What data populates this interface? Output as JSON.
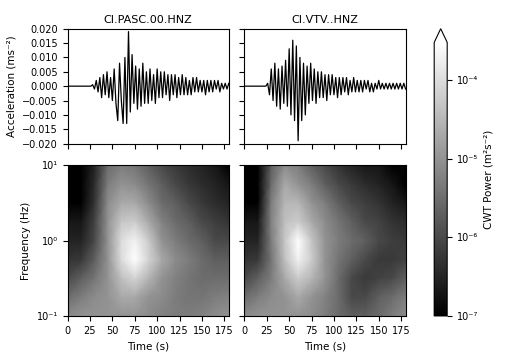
{
  "chart_data": [
    {
      "type": "line",
      "title": "CI.PASC.00.HNZ",
      "y_label": "Acceleration (ms⁻²)",
      "color": "black",
      "tick_labels": "y",
      "xlim": [
        0,
        180
      ],
      "xticks": [
        0,
        25,
        50,
        75,
        100,
        125,
        150,
        175
      ],
      "ylim": [
        -0.02,
        0.02
      ],
      "yticks": [
        {
          "value": -0.02,
          "label": "−0.020"
        },
        {
          "value": -0.015,
          "label": "−0.015"
        },
        {
          "value": -0.01,
          "label": "−0.010"
        },
        {
          "value": -0.005,
          "label": "−0.005"
        },
        {
          "value": 0,
          "label": "0.000"
        },
        {
          "value": 0.005,
          "label": "0.005"
        },
        {
          "value": 0.01,
          "label": "0.010"
        },
        {
          "value": 0.015,
          "label": "0.015"
        },
        {
          "value": 0.02,
          "label": "0.020"
        }
      ],
      "x": [
        0,
        2,
        4,
        6,
        8,
        10,
        12,
        14,
        16,
        18,
        20,
        22,
        24,
        26,
        28,
        30,
        32,
        34,
        36,
        38,
        40,
        42,
        44,
        46,
        48,
        50,
        52,
        54,
        56,
        58,
        60,
        62,
        64,
        66,
        68,
        70,
        72,
        74,
        76,
        78,
        80,
        82,
        84,
        86,
        88,
        90,
        92,
        94,
        96,
        98,
        100,
        102,
        104,
        106,
        108,
        110,
        112,
        114,
        116,
        118,
        120,
        122,
        124,
        126,
        128,
        130,
        132,
        134,
        136,
        138,
        140,
        142,
        144,
        146,
        148,
        150,
        152,
        154,
        156,
        158,
        160,
        162,
        164,
        166,
        168,
        170,
        172,
        174,
        176,
        178,
        180
      ],
      "values": [
        0,
        0,
        0,
        0,
        0,
        0,
        0,
        0,
        0,
        0,
        0,
        0,
        0,
        0,
        0.0005,
        -0.001,
        0.002,
        -0.002,
        0.003,
        -0.004,
        0.004,
        -0.003,
        0.005,
        -0.004,
        0.003,
        -0.005,
        0.006,
        -0.006,
        -0.012,
        0.008,
        -0.005,
        -0.013,
        0.01,
        -0.013,
        0.019,
        -0.009,
        0.011,
        -0.006,
        0.007,
        -0.008,
        0.006,
        -0.007,
        0.008,
        -0.006,
        0.005,
        -0.006,
        0.006,
        -0.005,
        0.004,
        -0.006,
        0.006,
        -0.004,
        0.005,
        -0.004,
        0.005,
        -0.003,
        0.004,
        -0.005,
        0.004,
        -0.003,
        0.004,
        -0.004,
        0.003,
        -0.003,
        0.004,
        -0.003,
        0.003,
        -0.003,
        0.002,
        -0.003,
        0.003,
        -0.002,
        0.003,
        -0.002,
        0.002,
        -0.002,
        0.002,
        -0.003,
        0.002,
        -0.002,
        0.002,
        -0.002,
        0.002,
        -0.001,
        0.002,
        -0.002,
        0.001,
        -0.001,
        0.001,
        -0.001,
        0.001
      ]
    },
    {
      "type": "line",
      "title": "CI.VTV..HNZ",
      "color": "black",
      "tick_labels": false,
      "xlim": [
        0,
        180
      ],
      "xticks": [
        0,
        25,
        50,
        75,
        100,
        125,
        150,
        175
      ],
      "ylim": [
        -0.02,
        0.02
      ],
      "yticks": [
        -0.02,
        -0.015,
        -0.01,
        -0.005,
        0,
        0.005,
        0.01,
        0.015,
        0.02
      ],
      "x": [
        0,
        2,
        4,
        6,
        8,
        10,
        12,
        14,
        16,
        18,
        20,
        22,
        24,
        26,
        28,
        30,
        32,
        34,
        36,
        38,
        40,
        42,
        44,
        46,
        48,
        50,
        52,
        54,
        56,
        58,
        60,
        62,
        64,
        66,
        68,
        70,
        72,
        74,
        76,
        78,
        80,
        82,
        84,
        86,
        88,
        90,
        92,
        94,
        96,
        98,
        100,
        102,
        104,
        106,
        108,
        110,
        112,
        114,
        116,
        118,
        120,
        122,
        124,
        126,
        128,
        130,
        132,
        134,
        136,
        138,
        140,
        142,
        144,
        146,
        148,
        150,
        152,
        154,
        156,
        158,
        160,
        162,
        164,
        166,
        168,
        170,
        172,
        174,
        176,
        178,
        180
      ],
      "values": [
        0,
        0,
        0,
        0,
        0,
        0,
        0,
        0,
        0,
        0,
        0,
        0,
        0,
        0.001,
        -0.003,
        0.006,
        -0.005,
        0.008,
        -0.007,
        0.006,
        -0.008,
        0.007,
        -0.006,
        0.009,
        -0.007,
        0.013,
        -0.01,
        0.016,
        -0.012,
        0.014,
        -0.019,
        0.01,
        -0.012,
        0.008,
        -0.01,
        0.007,
        -0.006,
        0.008,
        -0.005,
        0.006,
        -0.006,
        0.005,
        -0.004,
        0.005,
        -0.004,
        0.004,
        -0.005,
        0.004,
        -0.003,
        0.004,
        -0.003,
        0.003,
        -0.004,
        0.003,
        -0.003,
        0.003,
        -0.002,
        0.003,
        -0.003,
        0.002,
        -0.002,
        0.003,
        -0.002,
        0.002,
        -0.002,
        0.002,
        -0.002,
        0.002,
        -0.001,
        0.002,
        -0.002,
        0.001,
        -0.002,
        0.001,
        -0.001,
        0.002,
        -0.001,
        0.001,
        -0.001,
        0.001,
        -0.001,
        0.001,
        -0.001,
        0.001,
        -0.001,
        0.001,
        -0.001,
        0.001,
        -0.001,
        0.001,
        -0.001
      ]
    },
    {
      "type": "heatmap",
      "x_label": "Time (s)",
      "y_label": "Frequency (Hz)",
      "log": "y",
      "xlim": [
        0,
        180
      ],
      "xticks": [
        0,
        25,
        50,
        75,
        100,
        125,
        150,
        175
      ],
      "ylim": [
        0.1,
        10
      ],
      "yticks": [
        {
          "value": 0.1,
          "label": "10⁻¹"
        },
        {
          "value": 1,
          "label": "10⁰"
        },
        {
          "value": 10,
          "label": "10¹"
        }
      ],
      "x": [
        0,
        15,
        30,
        45,
        60,
        75,
        90,
        105,
        120,
        135,
        150,
        165,
        180
      ],
      "y": [
        0.1,
        0.18,
        0.32,
        0.56,
        1.0,
        1.8,
        3.2,
        5.6,
        10
      ],
      "cells": [
        [
          8e-06,
          1e-05,
          1e-05,
          1e-05,
          1e-05,
          1e-05,
          8e-06,
          6e-06,
          5e-06,
          5e-06,
          6e-06,
          8e-06,
          1e-05
        ],
        [
          3e-06,
          5e-06,
          8e-06,
          1e-05,
          2e-05,
          2e-05,
          1e-05,
          8e-06,
          5e-06,
          4e-06,
          4e-06,
          5e-06,
          6e-06
        ],
        [
          1e-06,
          2e-06,
          4e-06,
          1e-05,
          4e-05,
          8e-05,
          3e-05,
          1e-05,
          6e-06,
          4e-06,
          3e-06,
          3e-06,
          3e-06
        ],
        [
          5e-07,
          6e-07,
          2e-06,
          1e-05,
          0.0001,
          0.0003,
          8e-05,
          2e-05,
          8e-06,
          5e-06,
          3e-06,
          2e-06,
          2e-06
        ],
        [
          3e-07,
          3e-07,
          1e-06,
          1e-05,
          0.0001,
          0.0002,
          6e-05,
          1e-05,
          5e-06,
          3e-06,
          2e-06,
          1e-06,
          1e-06
        ],
        [
          2e-07,
          2e-07,
          8e-07,
          1e-05,
          5e-05,
          6e-05,
          2e-05,
          6e-06,
          3e-06,
          2e-06,
          1e-06,
          7e-07,
          5e-07
        ],
        [
          1e-07,
          1e-07,
          5e-07,
          8e-06,
          2e-05,
          2e-05,
          8e-06,
          3e-06,
          2e-06,
          1e-06,
          6e-07,
          4e-07,
          3e-07
        ],
        [
          1e-07,
          1e-07,
          4e-07,
          5e-06,
          1e-05,
          8e-06,
          4e-06,
          2e-06,
          1e-06,
          6e-07,
          4e-07,
          3e-07,
          2e-07
        ],
        [
          1e-07,
          1e-07,
          3e-07,
          3e-06,
          5e-06,
          4e-06,
          2e-06,
          1e-06,
          6e-07,
          4e-07,
          3e-07,
          2e-07,
          1e-07
        ]
      ]
    },
    {
      "type": "heatmap",
      "x_label": "Time (s)",
      "log": "y",
      "tick_labels": "x",
      "xlim": [
        0,
        180
      ],
      "xticks": [
        0,
        25,
        50,
        75,
        100,
        125,
        150,
        175
      ],
      "ylim": [
        0.1,
        10
      ],
      "yticks": [
        0.1,
        1,
        10
      ],
      "x": [
        0,
        15,
        30,
        45,
        60,
        75,
        90,
        105,
        120,
        135,
        150,
        165,
        180
      ],
      "y": [
        0.1,
        0.18,
        0.32,
        0.56,
        1.0,
        1.8,
        3.2,
        5.6,
        10
      ],
      "cells": [
        [
          8e-06,
          1e-05,
          1e-05,
          1e-05,
          1e-05,
          8e-06,
          5e-06,
          3e-06,
          2e-06,
          2e-06,
          3e-06,
          5e-06,
          8e-06
        ],
        [
          3e-06,
          5e-06,
          8e-06,
          1e-05,
          2e-05,
          1e-05,
          6e-06,
          3e-06,
          1e-06,
          1e-06,
          2e-06,
          3e-06,
          5e-06
        ],
        [
          1e-06,
          2e-06,
          5e-06,
          2e-05,
          6e-05,
          3e-05,
          1e-05,
          3e-06,
          1e-06,
          6e-07,
          8e-07,
          1e-06,
          2e-06
        ],
        [
          5e-07,
          6e-07,
          4e-06,
          4e-05,
          0.0002,
          6e-05,
          1e-05,
          4e-06,
          2e-06,
          1e-06,
          6e-07,
          6e-07,
          8e-07
        ],
        [
          3e-07,
          3e-07,
          5e-06,
          5e-05,
          0.0003,
          5e-05,
          1e-05,
          5e-06,
          3e-06,
          2e-06,
          1e-06,
          7e-07,
          6e-07
        ],
        [
          2e-07,
          2e-07,
          6e-06,
          4e-05,
          6e-05,
          2e-05,
          8e-06,
          4e-06,
          2e-06,
          1e-06,
          8e-07,
          5e-07,
          4e-07
        ],
        [
          1e-07,
          1e-07,
          5e-06,
          3e-05,
          3e-05,
          1e-05,
          5e-06,
          2e-06,
          1e-06,
          7e-07,
          5e-07,
          3e-07,
          2e-07
        ],
        [
          1e-07,
          1e-07,
          3e-06,
          2e-05,
          1e-05,
          5e-06,
          2e-06,
          1e-06,
          6e-07,
          4e-07,
          3e-07,
          2e-07,
          1e-07
        ],
        [
          1e-07,
          1e-07,
          2e-06,
          8e-06,
          5e-06,
          2e-06,
          1e-06,
          5e-07,
          3e-07,
          2e-07,
          2e-07,
          1e-07,
          1e-07
        ]
      ]
    }
  ],
  "colorbar": {
    "label": "CWT Power (m²s⁻²)",
    "range": [
      1e-07,
      0.0003
    ],
    "ticks": [
      {
        "value": 1e-07,
        "label": "10⁻⁷"
      },
      {
        "value": 1e-06,
        "label": "10⁻⁶"
      },
      {
        "value": 1e-05,
        "label": "10⁻⁵"
      },
      {
        "value": 0.0001,
        "label": "10⁻⁴"
      }
    ]
  }
}
